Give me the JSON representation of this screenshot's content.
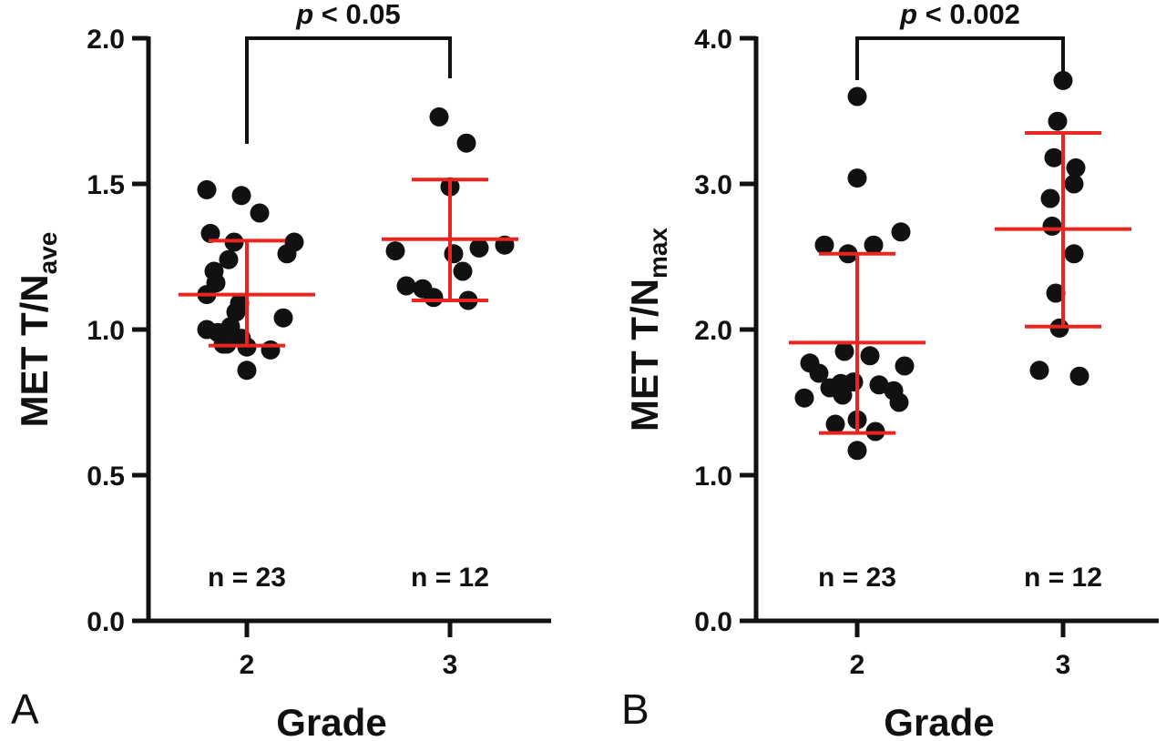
{
  "chart_data": [
    {
      "panel": "A",
      "type": "scatter",
      "ylabel_main": "MET T/N",
      "ylabel_sub": "ave",
      "xlabel": "Grade",
      "ylim": [
        0.0,
        2.0
      ],
      "yticks": [
        "0.0",
        "0.5",
        "1.0",
        "1.5",
        "2.0"
      ],
      "yticks_values": [
        0.0,
        0.5,
        1.0,
        1.5,
        2.0
      ],
      "categories": [
        "2",
        "3"
      ],
      "groups": [
        {
          "category": "2",
          "n_label": "n = 23",
          "mean": 1.12,
          "sd_low": 0.945,
          "sd_high": 1.305,
          "points": [
            {
              "x": 2,
              "y": 1.48
            },
            {
              "x": 2,
              "y": 1.46
            },
            {
              "x": 2,
              "y": 1.4
            },
            {
              "x": 2,
              "y": 1.33
            },
            {
              "x": 2,
              "y": 1.3
            },
            {
              "x": 2,
              "y": 1.3
            },
            {
              "x": 2,
              "y": 1.26
            },
            {
              "x": 2,
              "y": 1.24
            },
            {
              "x": 2,
              "y": 1.2
            },
            {
              "x": 2,
              "y": 1.16
            },
            {
              "x": 2,
              "y": 1.12
            },
            {
              "x": 2,
              "y": 1.09
            },
            {
              "x": 2,
              "y": 1.06
            },
            {
              "x": 2,
              "y": 1.04
            },
            {
              "x": 2,
              "y": 1.01
            },
            {
              "x": 2,
              "y": 1.0
            },
            {
              "x": 2,
              "y": 0.99
            },
            {
              "x": 2,
              "y": 0.97
            },
            {
              "x": 2,
              "y": 0.95
            },
            {
              "x": 2,
              "y": 0.95
            },
            {
              "x": 2,
              "y": 0.94
            },
            {
              "x": 2,
              "y": 0.93
            },
            {
              "x": 2,
              "y": 0.86
            }
          ]
        },
        {
          "category": "3",
          "n_label": "n = 12",
          "mean": 1.31,
          "sd_low": 1.1,
          "sd_high": 1.515,
          "points": [
            {
              "x": 3,
              "y": 1.73
            },
            {
              "x": 3,
              "y": 1.64
            },
            {
              "x": 3,
              "y": 1.49
            },
            {
              "x": 3,
              "y": 1.29
            },
            {
              "x": 3,
              "y": 1.28
            },
            {
              "x": 3,
              "y": 1.27
            },
            {
              "x": 3,
              "y": 1.26
            },
            {
              "x": 3,
              "y": 1.2
            },
            {
              "x": 3,
              "y": 1.15
            },
            {
              "x": 3,
              "y": 1.14
            },
            {
              "x": 3,
              "y": 1.11
            },
            {
              "x": 3,
              "y": 1.1
            }
          ]
        }
      ],
      "annotation": {
        "p_italic": "p",
        "text": " < 0.05"
      }
    },
    {
      "panel": "B",
      "type": "scatter",
      "ylabel_main": "MET T/N",
      "ylabel_sub": "max",
      "xlabel": "Grade",
      "ylim": [
        0.0,
        4.0
      ],
      "yticks": [
        "0.0",
        "1.0",
        "2.0",
        "3.0",
        "4.0"
      ],
      "yticks_values": [
        0.0,
        1.0,
        2.0,
        3.0,
        4.0
      ],
      "categories": [
        "2",
        "3"
      ],
      "groups": [
        {
          "category": "2",
          "n_label": "n = 23",
          "mean": 1.91,
          "sd_low": 1.29,
          "sd_high": 2.52,
          "points": [
            {
              "x": 2,
              "y": 3.6
            },
            {
              "x": 2,
              "y": 3.04
            },
            {
              "x": 2,
              "y": 2.67
            },
            {
              "x": 2,
              "y": 2.58
            },
            {
              "x": 2,
              "y": 2.58
            },
            {
              "x": 2,
              "y": 2.52
            },
            {
              "x": 2,
              "y": 1.85
            },
            {
              "x": 2,
              "y": 1.82
            },
            {
              "x": 2,
              "y": 1.77
            },
            {
              "x": 2,
              "y": 1.75
            },
            {
              "x": 2,
              "y": 1.7
            },
            {
              "x": 2,
              "y": 1.64
            },
            {
              "x": 2,
              "y": 1.63
            },
            {
              "x": 2,
              "y": 1.62
            },
            {
              "x": 2,
              "y": 1.6
            },
            {
              "x": 2,
              "y": 1.58
            },
            {
              "x": 2,
              "y": 1.55
            },
            {
              "x": 2,
              "y": 1.53
            },
            {
              "x": 2,
              "y": 1.5
            },
            {
              "x": 2,
              "y": 1.38
            },
            {
              "x": 2,
              "y": 1.35
            },
            {
              "x": 2,
              "y": 1.3
            },
            {
              "x": 2,
              "y": 1.17
            }
          ]
        },
        {
          "category": "3",
          "n_label": "n = 12",
          "mean": 2.69,
          "sd_low": 2.02,
          "sd_high": 3.35,
          "points": [
            {
              "x": 3,
              "y": 3.71
            },
            {
              "x": 3,
              "y": 3.43
            },
            {
              "x": 3,
              "y": 3.18
            },
            {
              "x": 3,
              "y": 3.11
            },
            {
              "x": 3,
              "y": 3.0
            },
            {
              "x": 3,
              "y": 2.9
            },
            {
              "x": 3,
              "y": 2.71
            },
            {
              "x": 3,
              "y": 2.52
            },
            {
              "x": 3,
              "y": 2.25
            },
            {
              "x": 3,
              "y": 2.01
            },
            {
              "x": 3,
              "y": 1.72
            },
            {
              "x": 3,
              "y": 1.68
            }
          ]
        }
      ],
      "annotation": {
        "p_italic": "p",
        "text": " < 0.002"
      }
    }
  ]
}
